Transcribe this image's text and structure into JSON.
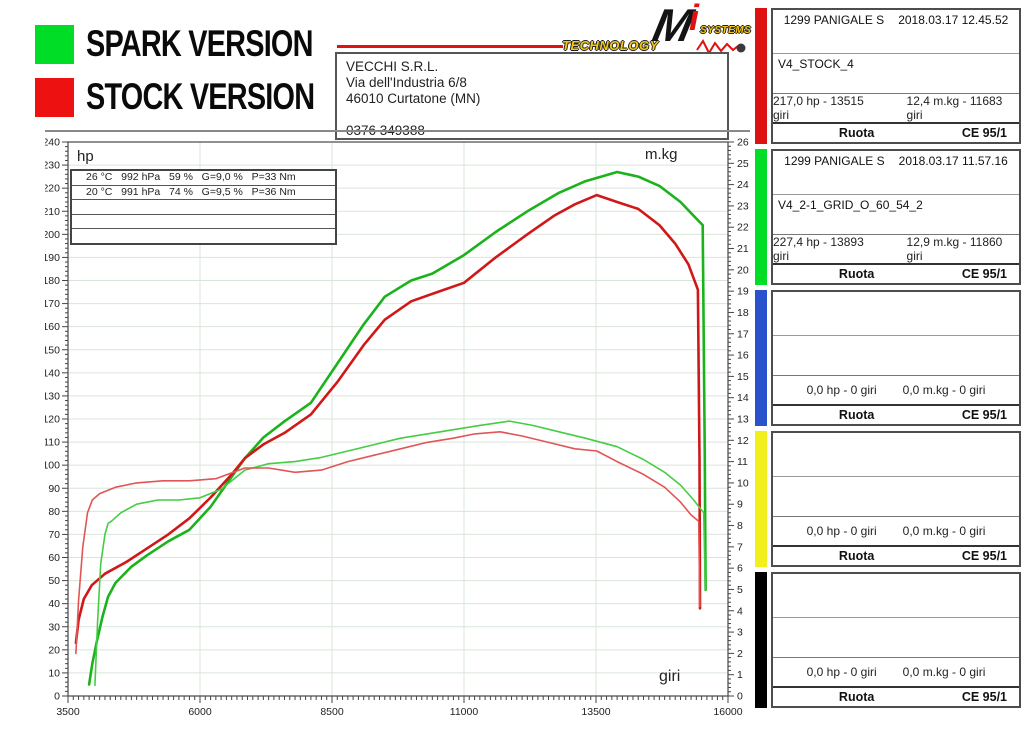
{
  "legend": {
    "items": [
      {
        "label": "SPARK VERSION",
        "color": "#00dd26"
      },
      {
        "label": "STOCK VERSION",
        "color": "#ee1111"
      }
    ]
  },
  "brand": {
    "technology": "TECHNOLOGY",
    "m": "M",
    "i": "i",
    "systems": "SYSTEMS",
    "rule_color": "#e11111"
  },
  "shop": {
    "lines": [
      "VECCHI S.R.L.",
      "Via dell'Industria 6/8",
      "46010 Curtatone (MN)",
      "",
      "0376 349388"
    ]
  },
  "sidebar": {
    "panels": [
      {
        "color": "#dd1111",
        "model": "1299 PANIGALE S",
        "datetime": "2018.03.17 12.45.52",
        "run_name": "V4_STOCK_4",
        "power": "217,0 hp - 13515 giri",
        "torque": "12,4 m.kg - 11683 giri",
        "wheel_label": "Ruota",
        "certification": "CE 95/1"
      },
      {
        "color": "#00dd26",
        "model": "1299 PANIGALE S",
        "datetime": "2018.03.17 11.57.16",
        "run_name": "V4_2-1_GRID_O_60_54_2",
        "power": "227,4 hp - 13893 giri",
        "torque": "12,9 m.kg - 11860 giri",
        "wheel_label": "Ruota",
        "certification": "CE 95/1"
      },
      {
        "color": "#2a52cc",
        "model": "",
        "datetime": "",
        "run_name": "",
        "power": "0,0 hp - 0 giri",
        "torque": "0,0 m.kg - 0 giri",
        "wheel_label": "Ruota",
        "certification": "CE 95/1"
      },
      {
        "color": "#f2ef1c",
        "model": "",
        "datetime": "",
        "run_name": "",
        "power": "0,0 hp - 0 giri",
        "torque": "0,0 m.kg - 0 giri",
        "wheel_label": "Ruota",
        "certification": "CE 95/1"
      },
      {
        "color": "#000000",
        "model": "",
        "datetime": "",
        "run_name": "",
        "power": "0,0 hp - 0 giri",
        "torque": "0,0 m.kg - 0 giri",
        "wheel_label": "Ruota",
        "certification": "CE 95/1"
      }
    ]
  },
  "chart_data": {
    "type": "line",
    "xlabel": "giri",
    "ylabel_left": "hp",
    "ylabel_right": "m.kg",
    "x_range": [
      3500,
      16000
    ],
    "x_ticks": [
      3500,
      6000,
      8500,
      11000,
      13500,
      16000
    ],
    "x_minor_step": 100,
    "y_left_range": [
      0,
      240
    ],
    "y_left_major": 10,
    "y_left_minor": 2,
    "y_right_range": [
      0,
      26
    ],
    "y_right_major": 1,
    "y_right_minor": 0.2,
    "grid": true,
    "grid_color": "#d9e5d9",
    "env_rows": [
      "26 °C   992 hPa   59 %   G=9,0 %   P=33 Nm",
      "20 °C   991 hPa   74 %   G=9,5 %   P=36 Nm",
      "",
      "",
      ""
    ],
    "series": [
      {
        "name": "spark-power-hp",
        "axis": "left",
        "color": "#1cb21c",
        "width": 2.6,
        "points": [
          [
            3900,
            5
          ],
          [
            3960,
            14
          ],
          [
            4050,
            24
          ],
          [
            4150,
            34
          ],
          [
            4260,
            43
          ],
          [
            4400,
            49
          ],
          [
            4700,
            56
          ],
          [
            5000,
            61
          ],
          [
            5400,
            67
          ],
          [
            5800,
            72
          ],
          [
            6200,
            82
          ],
          [
            6600,
            95
          ],
          [
            6850,
            103
          ],
          [
            7200,
            112
          ],
          [
            7600,
            119
          ],
          [
            8100,
            127
          ],
          [
            8600,
            144
          ],
          [
            9100,
            161
          ],
          [
            9500,
            173
          ],
          [
            10000,
            180
          ],
          [
            10400,
            183
          ],
          [
            11000,
            191
          ],
          [
            11600,
            201
          ],
          [
            12200,
            210
          ],
          [
            12800,
            218
          ],
          [
            13300,
            223
          ],
          [
            13900,
            227
          ],
          [
            14300,
            225
          ],
          [
            14700,
            221
          ],
          [
            15100,
            214
          ],
          [
            15350,
            208
          ],
          [
            15520,
            204
          ],
          [
            15560,
            103
          ],
          [
            15575,
            46
          ]
        ]
      },
      {
        "name": "stock-power-hp",
        "axis": "left",
        "color": "#d01818",
        "width": 2.6,
        "points": [
          [
            3650,
            23
          ],
          [
            3700,
            33
          ],
          [
            3800,
            42
          ],
          [
            3950,
            48
          ],
          [
            4200,
            53
          ],
          [
            4600,
            58
          ],
          [
            5000,
            64
          ],
          [
            5400,
            70
          ],
          [
            5800,
            77
          ],
          [
            6200,
            86
          ],
          [
            6600,
            96
          ],
          [
            6850,
            103
          ],
          [
            7200,
            109
          ],
          [
            7600,
            114
          ],
          [
            8100,
            122
          ],
          [
            8600,
            136
          ],
          [
            9100,
            152
          ],
          [
            9500,
            163
          ],
          [
            10000,
            171
          ],
          [
            10500,
            175
          ],
          [
            11000,
            179
          ],
          [
            11600,
            190
          ],
          [
            12200,
            200
          ],
          [
            12700,
            208
          ],
          [
            13100,
            213
          ],
          [
            13515,
            217
          ],
          [
            13900,
            214
          ],
          [
            14300,
            211
          ],
          [
            14700,
            204
          ],
          [
            15000,
            196
          ],
          [
            15250,
            187
          ],
          [
            15430,
            176
          ],
          [
            15460,
            103
          ],
          [
            15470,
            38
          ]
        ]
      },
      {
        "name": "spark-torque-mkg",
        "axis": "right",
        "color": "#45cc45",
        "width": 1.6,
        "points": [
          [
            4010,
            0.5
          ],
          [
            4060,
            3.5
          ],
          [
            4120,
            6.2
          ],
          [
            4200,
            7.6
          ],
          [
            4260,
            8.1
          ],
          [
            4320,
            8.2
          ],
          [
            4500,
            8.6
          ],
          [
            4800,
            9.0
          ],
          [
            5200,
            9.2
          ],
          [
            5600,
            9.2
          ],
          [
            6000,
            9.3
          ],
          [
            6400,
            9.7
          ],
          [
            6850,
            10.6
          ],
          [
            7300,
            10.9
          ],
          [
            7800,
            11.0
          ],
          [
            8300,
            11.2
          ],
          [
            8800,
            11.5
          ],
          [
            9300,
            11.8
          ],
          [
            9800,
            12.1
          ],
          [
            10300,
            12.3
          ],
          [
            10800,
            12.5
          ],
          [
            11300,
            12.7
          ],
          [
            11860,
            12.9
          ],
          [
            12300,
            12.7
          ],
          [
            12800,
            12.4
          ],
          [
            13300,
            12.1
          ],
          [
            13900,
            11.7
          ],
          [
            14400,
            11.1
          ],
          [
            14800,
            10.5
          ],
          [
            15100,
            9.9
          ],
          [
            15350,
            9.2
          ],
          [
            15540,
            8.6
          ],
          [
            15570,
            5.0
          ]
        ]
      },
      {
        "name": "stock-torque-mkg",
        "axis": "right",
        "color": "#e25555",
        "width": 1.6,
        "points": [
          [
            3650,
            2.0
          ],
          [
            3700,
            4.5
          ],
          [
            3780,
            7.0
          ],
          [
            3870,
            8.6
          ],
          [
            3960,
            9.2
          ],
          [
            4100,
            9.5
          ],
          [
            4400,
            9.8
          ],
          [
            4800,
            10.0
          ],
          [
            5300,
            10.1
          ],
          [
            5800,
            10.1
          ],
          [
            6300,
            10.2
          ],
          [
            6850,
            10.7
          ],
          [
            7300,
            10.7
          ],
          [
            7800,
            10.5
          ],
          [
            8300,
            10.6
          ],
          [
            8800,
            11.0
          ],
          [
            9300,
            11.3
          ],
          [
            9800,
            11.6
          ],
          [
            10300,
            11.9
          ],
          [
            10800,
            12.1
          ],
          [
            11200,
            12.3
          ],
          [
            11683,
            12.4
          ],
          [
            12100,
            12.2
          ],
          [
            12600,
            11.9
          ],
          [
            13100,
            11.6
          ],
          [
            13515,
            11.5
          ],
          [
            13900,
            11.0
          ],
          [
            14400,
            10.4
          ],
          [
            14800,
            9.8
          ],
          [
            15100,
            9.1
          ],
          [
            15300,
            8.5
          ],
          [
            15445,
            8.2
          ],
          [
            15465,
            4.2
          ]
        ]
      }
    ]
  }
}
